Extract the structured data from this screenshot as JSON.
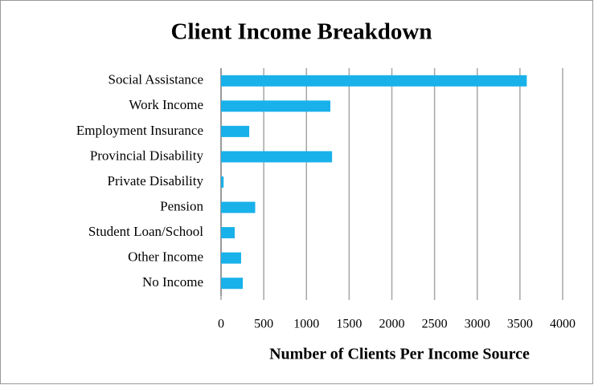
{
  "chart_data": {
    "type": "bar",
    "orientation": "horizontal",
    "title": "Client Income Breakdown",
    "x_label": "Number of Clients Per Income Source",
    "categories": [
      "Social Assistance",
      "Work Income",
      "Employment Insurance",
      "Provincial Disability",
      "Private Disability",
      "Pension",
      "Student Loan/School",
      "Other Income",
      "No Income"
    ],
    "values": [
      3580,
      1280,
      330,
      1300,
      30,
      400,
      160,
      235,
      255
    ],
    "color": "#19b1ea",
    "xlim": [
      0,
      4000
    ],
    "xticks": [
      0,
      500,
      1000,
      1500,
      2000,
      2500,
      3000,
      3500,
      4000
    ],
    "grid": true
  }
}
